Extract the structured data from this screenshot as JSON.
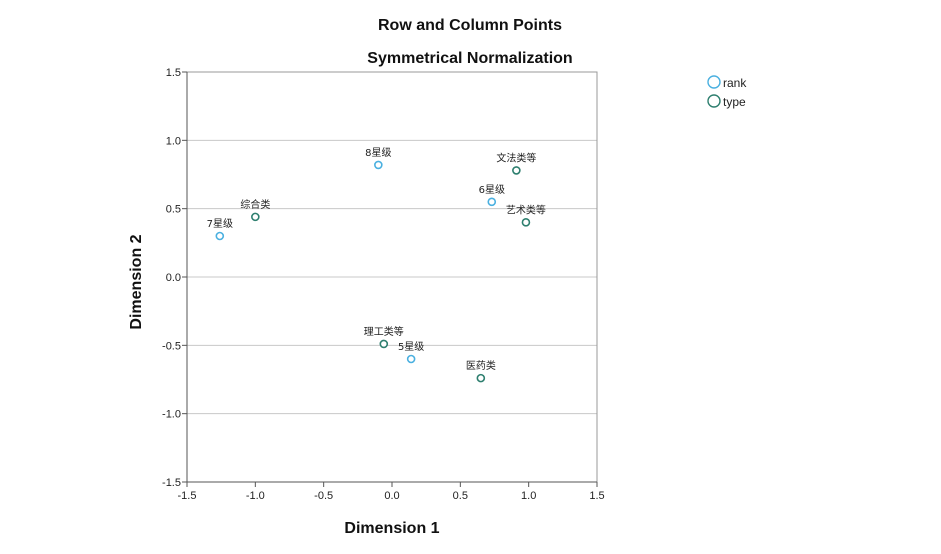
{
  "chart_data": {
    "type": "scatter",
    "title": "Row and Column Points",
    "subtitle": "Symmetrical Normalization",
    "xlabel": "Dimension 1",
    "ylabel": "Dimension 2",
    "xlim": [
      -1.5,
      1.5
    ],
    "ylim": [
      -1.5,
      1.5
    ],
    "xticks": [
      "-1.5",
      "-1.0",
      "-0.5",
      "0.0",
      "0.5",
      "1.0",
      "1.5"
    ],
    "yticks": [
      "1.5",
      "1.0",
      "0.5",
      "0.0",
      "-0.5",
      "-1.0",
      "-1.5"
    ],
    "grid": "horizontal",
    "legend_position": "top-right",
    "series": [
      {
        "name": "rank",
        "color": "#4ab0e0",
        "points": [
          {
            "label": "8星级",
            "x": -0.1,
            "y": 0.82
          },
          {
            "label": "6星级",
            "x": 0.73,
            "y": 0.55
          },
          {
            "label": "7星级",
            "x": -1.26,
            "y": 0.3
          },
          {
            "label": "5星级",
            "x": 0.14,
            "y": -0.6
          }
        ]
      },
      {
        "name": "type",
        "color": "#2e7f6f",
        "points": [
          {
            "label": "文法类等",
            "x": 0.91,
            "y": 0.78
          },
          {
            "label": "综合类",
            "x": -1.0,
            "y": 0.44
          },
          {
            "label": "艺术类等",
            "x": 0.98,
            "y": 0.4
          },
          {
            "label": "理工类等",
            "x": -0.06,
            "y": -0.49
          },
          {
            "label": "医药类",
            "x": 0.65,
            "y": -0.74
          }
        ]
      }
    ]
  }
}
